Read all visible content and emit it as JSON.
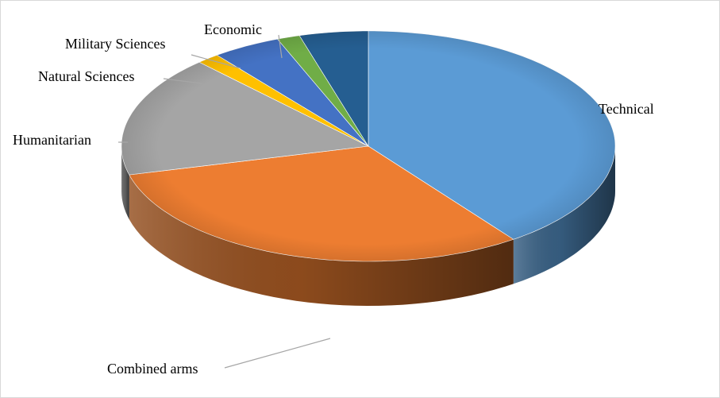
{
  "chart_data": {
    "type": "pie",
    "title": "",
    "slices": [
      {
        "label": "Technical",
        "value": 40,
        "color": "#5b9bd5"
      },
      {
        "label": "Combined arms",
        "value": 31,
        "color": "#ed7d31"
      },
      {
        "label": "Humanitarian",
        "value": 17,
        "color": "#a5a5a5"
      },
      {
        "label": "Natural Sciences",
        "value": 1.5,
        "color": "#ffc000"
      },
      {
        "label": "Military Sciences",
        "value": 4.5,
        "color": "#4472c4"
      },
      {
        "label": "Economic",
        "value": 1.5,
        "color": "#70ad47"
      },
      {
        "label": "",
        "value": 4.5,
        "color": "#255e91"
      }
    ],
    "legend": "none",
    "style": "3d-pie"
  }
}
